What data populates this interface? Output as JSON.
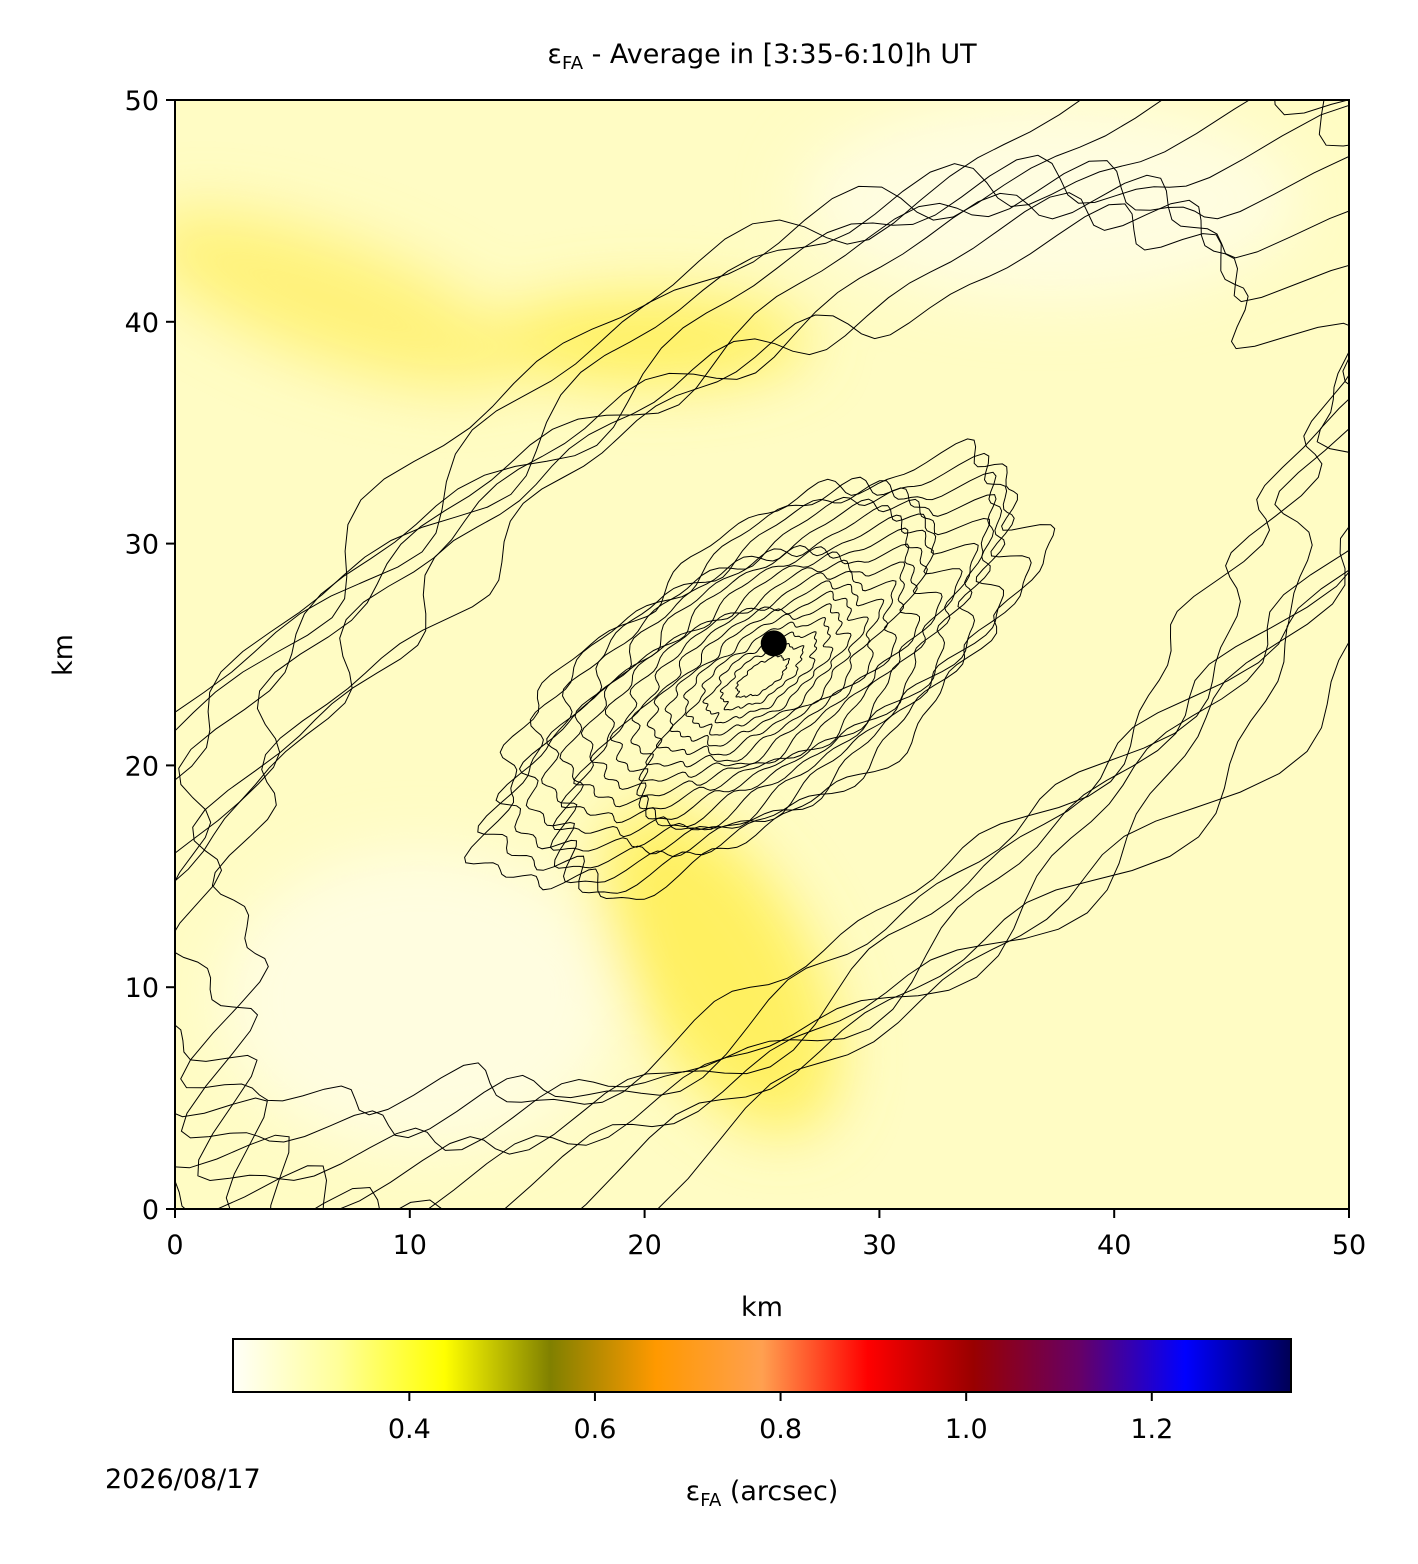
{
  "chart_data": {
    "type": "contour",
    "title": {
      "symbol": "ε",
      "subscript": "FA",
      "text": " - Average in [3:35-6:10]h UT"
    },
    "xlabel": "km",
    "ylabel": "km",
    "xlim": [
      0,
      50
    ],
    "ylim": [
      0,
      50
    ],
    "xticks": [
      0,
      10,
      20,
      30,
      40,
      50
    ],
    "yticks": [
      0,
      10,
      20,
      30,
      40,
      50
    ],
    "point": {
      "x": 25.5,
      "y": 25.5,
      "color": "#000000"
    },
    "colorbar": {
      "lim": [
        0.21,
        1.35
      ],
      "ticks": [
        0.4,
        0.6,
        0.8,
        {
          "value": 1,
          "label": "1.0"
        },
        1.2
      ],
      "label": {
        "symbol": "ε",
        "subscript": "FA",
        "text": " (arcsec)"
      },
      "colors": [
        "#fffff8",
        "#ffff99",
        "#ffff00",
        "#808000",
        "#ff9900",
        "#ffa050",
        "#ff0000",
        "#990000",
        "#660066",
        "#0000ff",
        "#000055"
      ]
    },
    "date": "2026/08/17"
  }
}
